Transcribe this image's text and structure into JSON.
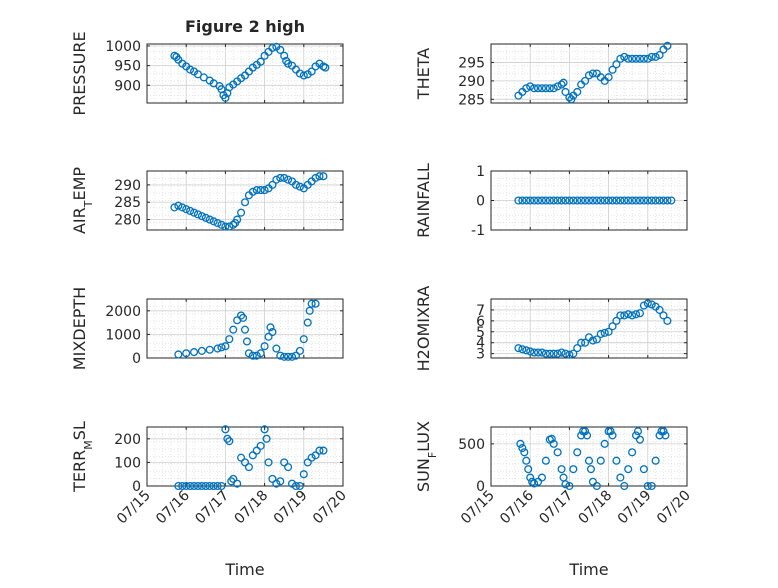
{
  "figure_title": "Figure 2 high",
  "chart_data": [
    {
      "type": "scatter",
      "title": "Figure 2 high",
      "ylabel": "PRESSURE",
      "ylim": [
        855,
        1005
      ],
      "yticks": [
        900,
        950,
        1000
      ],
      "xlim": [
        "2000-07-15",
        "2000-07-20"
      ],
      "points": [
        [
          15.7,
          975
        ],
        [
          15.75,
          972
        ],
        [
          15.8,
          965
        ],
        [
          15.9,
          955
        ],
        [
          16.0,
          948
        ],
        [
          16.1,
          940
        ],
        [
          16.2,
          935
        ],
        [
          16.3,
          928
        ],
        [
          16.45,
          920
        ],
        [
          16.6,
          912
        ],
        [
          16.7,
          905
        ],
        [
          16.85,
          898
        ],
        [
          16.9,
          890
        ],
        [
          16.95,
          875
        ],
        [
          17.0,
          868
        ],
        [
          17.05,
          880
        ],
        [
          17.1,
          895
        ],
        [
          17.2,
          902
        ],
        [
          17.3,
          910
        ],
        [
          17.4,
          918
        ],
        [
          17.5,
          925
        ],
        [
          17.6,
          935
        ],
        [
          17.7,
          945
        ],
        [
          17.8,
          952
        ],
        [
          17.9,
          960
        ],
        [
          18.0,
          975
        ],
        [
          18.1,
          985
        ],
        [
          18.2,
          995
        ],
        [
          18.3,
          998
        ],
        [
          18.4,
          990
        ],
        [
          18.5,
          975
        ],
        [
          18.55,
          962
        ],
        [
          18.6,
          955
        ],
        [
          18.7,
          950
        ],
        [
          18.8,
          940
        ],
        [
          18.9,
          930
        ],
        [
          19.0,
          925
        ],
        [
          19.1,
          928
        ],
        [
          19.2,
          935
        ],
        [
          19.3,
          948
        ],
        [
          19.4,
          955
        ],
        [
          19.5,
          948
        ],
        [
          19.55,
          945
        ]
      ]
    },
    {
      "type": "scatter",
      "ylabel": "THETA",
      "ylim": [
        284,
        300
      ],
      "yticks": [
        285,
        290,
        295
      ],
      "points": [
        [
          15.7,
          286
        ],
        [
          15.8,
          287
        ],
        [
          15.9,
          288
        ],
        [
          16.0,
          288.5
        ],
        [
          16.1,
          288
        ],
        [
          16.2,
          288
        ],
        [
          16.3,
          288
        ],
        [
          16.4,
          288
        ],
        [
          16.5,
          288
        ],
        [
          16.6,
          288
        ],
        [
          16.7,
          288.5
        ],
        [
          16.8,
          289
        ],
        [
          16.85,
          289.5
        ],
        [
          16.9,
          287
        ],
        [
          17.0,
          285.5
        ],
        [
          17.05,
          285
        ],
        [
          17.1,
          286
        ],
        [
          17.2,
          287
        ],
        [
          17.3,
          289
        ],
        [
          17.4,
          290
        ],
        [
          17.5,
          291.5
        ],
        [
          17.6,
          292
        ],
        [
          17.7,
          292
        ],
        [
          17.8,
          291
        ],
        [
          17.9,
          290
        ],
        [
          18.0,
          291
        ],
        [
          18.1,
          293
        ],
        [
          18.2,
          294.5
        ],
        [
          18.3,
          296
        ],
        [
          18.4,
          296.5
        ],
        [
          18.5,
          296
        ],
        [
          18.6,
          296
        ],
        [
          18.7,
          296
        ],
        [
          18.8,
          296
        ],
        [
          18.9,
          296
        ],
        [
          19.0,
          296
        ],
        [
          19.1,
          296.5
        ],
        [
          19.2,
          296.5
        ],
        [
          19.3,
          297
        ],
        [
          19.4,
          298.5
        ],
        [
          19.5,
          299.5
        ]
      ]
    },
    {
      "type": "scatter",
      "ylabel_main": "AIR",
      "ylabel_sub": "T",
      "ylabel_rest": "EMP",
      "ylim": [
        277,
        294
      ],
      "yticks": [
        280,
        285,
        290
      ],
      "points": [
        [
          15.7,
          283.5
        ],
        [
          15.8,
          284
        ],
        [
          15.9,
          283.5
        ],
        [
          16.0,
          283
        ],
        [
          16.1,
          282.5
        ],
        [
          16.2,
          282
        ],
        [
          16.3,
          281.5
        ],
        [
          16.4,
          281
        ],
        [
          16.5,
          280.5
        ],
        [
          16.6,
          280
        ],
        [
          16.7,
          279.5
        ],
        [
          16.8,
          279
        ],
        [
          16.9,
          278.5
        ],
        [
          17.0,
          278
        ],
        [
          17.1,
          278
        ],
        [
          17.2,
          278.5
        ],
        [
          17.25,
          279
        ],
        [
          17.3,
          280
        ],
        [
          17.4,
          282
        ],
        [
          17.5,
          285
        ],
        [
          17.6,
          287
        ],
        [
          17.7,
          288
        ],
        [
          17.8,
          288.5
        ],
        [
          17.9,
          288.5
        ],
        [
          18.0,
          288.5
        ],
        [
          18.1,
          289
        ],
        [
          18.2,
          290
        ],
        [
          18.3,
          291.5
        ],
        [
          18.4,
          292
        ],
        [
          18.5,
          292
        ],
        [
          18.6,
          291.5
        ],
        [
          18.7,
          291
        ],
        [
          18.8,
          290
        ],
        [
          18.9,
          289.5
        ],
        [
          19.0,
          289
        ],
        [
          19.1,
          290
        ],
        [
          19.2,
          291
        ],
        [
          19.3,
          292
        ],
        [
          19.4,
          292.5
        ],
        [
          19.5,
          292.5
        ]
      ]
    },
    {
      "type": "scatter",
      "ylabel": "RAINFALL",
      "ylim": [
        -1,
        1
      ],
      "yticks": [
        -1,
        0,
        1
      ],
      "points_constant": {
        "x_start": 15.7,
        "x_end": 19.6,
        "count": 40,
        "y": 0
      }
    },
    {
      "type": "scatter",
      "ylabel": "MIXDEPTH",
      "ylim": [
        0,
        2500
      ],
      "yticks": [
        0,
        1000,
        2000
      ],
      "points": [
        [
          15.8,
          150
        ],
        [
          16.0,
          200
        ],
        [
          16.2,
          250
        ],
        [
          16.4,
          300
        ],
        [
          16.6,
          350
        ],
        [
          16.8,
          400
        ],
        [
          16.9,
          450
        ],
        [
          17.0,
          500
        ],
        [
          17.1,
          800
        ],
        [
          17.2,
          1200
        ],
        [
          17.3,
          1600
        ],
        [
          17.4,
          1800
        ],
        [
          17.45,
          1700
        ],
        [
          17.5,
          1200
        ],
        [
          17.55,
          700
        ],
        [
          17.6,
          200
        ],
        [
          17.7,
          100
        ],
        [
          17.8,
          100
        ],
        [
          17.9,
          200
        ],
        [
          18.0,
          500
        ],
        [
          18.1,
          900
        ],
        [
          18.15,
          1300
        ],
        [
          18.2,
          1100
        ],
        [
          18.3,
          400
        ],
        [
          18.4,
          100
        ],
        [
          18.5,
          50
        ],
        [
          18.6,
          50
        ],
        [
          18.7,
          50
        ],
        [
          18.8,
          100
        ],
        [
          18.9,
          300
        ],
        [
          19.0,
          800
        ],
        [
          19.1,
          1500
        ],
        [
          19.15,
          2000
        ],
        [
          19.2,
          2300
        ],
        [
          19.3,
          2300
        ]
      ]
    },
    {
      "type": "scatter",
      "ylabel": "H2OMIXRA",
      "ylim": [
        2.6,
        8
      ],
      "yticks": [
        3,
        4,
        5,
        6,
        7
      ],
      "points": [
        [
          15.7,
          3.5
        ],
        [
          15.8,
          3.4
        ],
        [
          15.9,
          3.3
        ],
        [
          16.0,
          3.2
        ],
        [
          16.1,
          3.1
        ],
        [
          16.2,
          3.1
        ],
        [
          16.3,
          3.1
        ],
        [
          16.4,
          3.0
        ],
        [
          16.5,
          3.0
        ],
        [
          16.6,
          3.0
        ],
        [
          16.7,
          3.0
        ],
        [
          16.8,
          3.1
        ],
        [
          16.9,
          3.0
        ],
        [
          17.0,
          2.9
        ],
        [
          17.1,
          3.0
        ],
        [
          17.2,
          3.5
        ],
        [
          17.3,
          4.0
        ],
        [
          17.4,
          4.0
        ],
        [
          17.5,
          4.5
        ],
        [
          17.6,
          4.2
        ],
        [
          17.7,
          4.3
        ],
        [
          17.8,
          4.8
        ],
        [
          17.9,
          4.9
        ],
        [
          18.0,
          5.0
        ],
        [
          18.1,
          5.5
        ],
        [
          18.2,
          6.0
        ],
        [
          18.3,
          6.5
        ],
        [
          18.4,
          6.5
        ],
        [
          18.5,
          6.6
        ],
        [
          18.6,
          6.5
        ],
        [
          18.7,
          6.6
        ],
        [
          18.8,
          6.7
        ],
        [
          18.9,
          7.4
        ],
        [
          19.0,
          7.6
        ],
        [
          19.1,
          7.5
        ],
        [
          19.2,
          7.3
        ],
        [
          19.3,
          7.0
        ],
        [
          19.4,
          6.5
        ],
        [
          19.5,
          6.0
        ]
      ]
    },
    {
      "type": "scatter",
      "ylabel_main": "TERR",
      "ylabel_sub": "M",
      "ylabel_rest": "SL",
      "ylim": [
        0,
        250
      ],
      "yticks": [
        0,
        100,
        200
      ],
      "points": [
        [
          15.8,
          0
        ],
        [
          15.9,
          0
        ],
        [
          16.0,
          0
        ],
        [
          16.1,
          0
        ],
        [
          16.2,
          0
        ],
        [
          16.3,
          0
        ],
        [
          16.4,
          0
        ],
        [
          16.5,
          0
        ],
        [
          16.6,
          0
        ],
        [
          16.7,
          0
        ],
        [
          16.8,
          0
        ],
        [
          16.9,
          0
        ],
        [
          17.0,
          240
        ],
        [
          17.05,
          200
        ],
        [
          17.1,
          190
        ],
        [
          17.15,
          20
        ],
        [
          17.2,
          30
        ],
        [
          17.3,
          10
        ],
        [
          17.4,
          120
        ],
        [
          17.5,
          100
        ],
        [
          17.6,
          80
        ],
        [
          17.7,
          130
        ],
        [
          17.8,
          150
        ],
        [
          17.9,
          170
        ],
        [
          18.0,
          240
        ],
        [
          18.05,
          200
        ],
        [
          18.1,
          100
        ],
        [
          18.2,
          30
        ],
        [
          18.3,
          10
        ],
        [
          18.4,
          20
        ],
        [
          18.5,
          100
        ],
        [
          18.6,
          80
        ],
        [
          18.7,
          10
        ],
        [
          18.8,
          0
        ],
        [
          18.9,
          0
        ],
        [
          19.0,
          50
        ],
        [
          19.1,
          100
        ],
        [
          19.2,
          120
        ],
        [
          19.3,
          130
        ],
        [
          19.4,
          150
        ],
        [
          19.5,
          150
        ]
      ]
    },
    {
      "type": "scatter",
      "ylabel_main": "SUN",
      "ylabel_sub": "F",
      "ylabel_rest": "LUX",
      "ylim": [
        0,
        700
      ],
      "yticks": [
        0,
        500
      ],
      "points": [
        [
          15.75,
          500
        ],
        [
          15.8,
          450
        ],
        [
          15.85,
          400
        ],
        [
          15.9,
          300
        ],
        [
          15.95,
          200
        ],
        [
          16.0,
          100
        ],
        [
          16.05,
          50
        ],
        [
          16.1,
          30
        ],
        [
          16.2,
          50
        ],
        [
          16.3,
          100
        ],
        [
          16.4,
          300
        ],
        [
          16.5,
          550
        ],
        [
          16.55,
          560
        ],
        [
          16.6,
          500
        ],
        [
          16.7,
          400
        ],
        [
          16.8,
          200
        ],
        [
          16.85,
          100
        ],
        [
          16.9,
          20
        ],
        [
          17.0,
          0
        ],
        [
          17.1,
          200
        ],
        [
          17.2,
          400
        ],
        [
          17.3,
          600
        ],
        [
          17.35,
          650
        ],
        [
          17.4,
          650
        ],
        [
          17.45,
          600
        ],
        [
          17.5,
          300
        ],
        [
          17.55,
          200
        ],
        [
          17.6,
          50
        ],
        [
          17.7,
          0
        ],
        [
          17.8,
          300
        ],
        [
          17.9,
          500
        ],
        [
          18.0,
          650
        ],
        [
          18.05,
          650
        ],
        [
          18.1,
          600
        ],
        [
          18.2,
          300
        ],
        [
          18.3,
          100
        ],
        [
          18.4,
          0
        ],
        [
          18.5,
          200
        ],
        [
          18.6,
          400
        ],
        [
          18.7,
          600
        ],
        [
          18.75,
          650
        ],
        [
          18.8,
          550
        ],
        [
          18.9,
          200
        ],
        [
          19.0,
          0
        ],
        [
          19.1,
          0
        ],
        [
          19.2,
          300
        ],
        [
          19.3,
          600
        ],
        [
          19.35,
          650
        ],
        [
          19.4,
          650
        ],
        [
          19.45,
          600
        ]
      ]
    }
  ],
  "x_tick_labels": [
    "07/15",
    "07/16",
    "07/17",
    "07/18",
    "07/19",
    "07/20"
  ],
  "x_label": "Time",
  "style": {
    "marker_color": "#0072BD",
    "axis_color": "#262626",
    "grid_color": "#dcdcdc"
  }
}
